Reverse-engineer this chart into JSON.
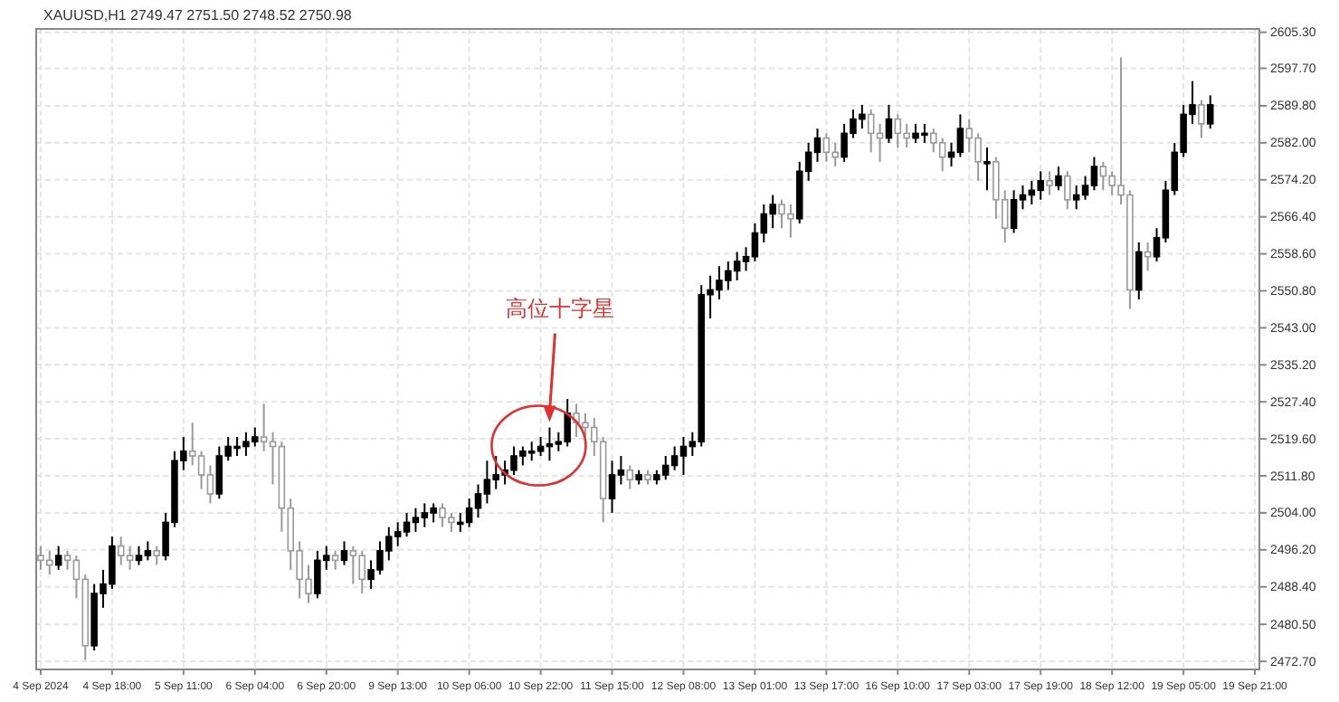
{
  "chart_data": {
    "type": "candlestick",
    "title": "XAUUSD,H1 2749.47 2751.50 2748.52 2750.98",
    "grid": true,
    "categories": [
      "4 Sep 2024",
      null,
      null,
      null,
      null,
      null,
      null,
      null,
      "4 Sep 18:00",
      null,
      null,
      null,
      null,
      null,
      null,
      null,
      "5 Sep 11:00",
      null,
      null,
      null,
      null,
      null,
      null,
      null,
      "6 Sep 04:00",
      null,
      null,
      null,
      null,
      null,
      null,
      null,
      "6 Sep 20:00",
      null,
      null,
      null,
      null,
      null,
      null,
      null,
      "9 Sep 13:00",
      null,
      null,
      null,
      null,
      null,
      null,
      null,
      "10 Sep 06:00",
      null,
      null,
      null,
      null,
      null,
      null,
      null,
      "10 Sep 22:00",
      null,
      null,
      null,
      null,
      null,
      null,
      null,
      "11 Sep 15:00",
      null,
      null,
      null,
      null,
      null,
      null,
      null,
      "12 Sep 08:00",
      null,
      null,
      null,
      null,
      null,
      null,
      null,
      "13 Sep 01:00",
      null,
      null,
      null,
      null,
      null,
      null,
      null,
      "13 Sep 17:00",
      null,
      null,
      null,
      null,
      null,
      null,
      null,
      "16 Sep 10:00",
      null,
      null,
      null,
      null,
      null,
      null,
      null,
      "17 Sep 03:00",
      null,
      null,
      null,
      null,
      null,
      null,
      null,
      "17 Sep 19:00",
      null,
      null,
      null,
      null,
      null,
      null,
      null,
      "18 Sep 12:00",
      null,
      null,
      null,
      null,
      null,
      null,
      null,
      "19 Sep 05:00",
      null,
      null,
      null,
      null,
      null,
      null,
      null,
      "19 Sep 21:00"
    ],
    "ohlc": [
      [
        2495,
        2497,
        2492,
        2494
      ],
      [
        2494,
        2496,
        2491,
        2493
      ],
      [
        2493,
        2497,
        2492,
        2495
      ],
      [
        2495,
        2496,
        2492,
        2494
      ],
      [
        2494,
        2495,
        2486,
        2490
      ],
      [
        2490,
        2491,
        2473,
        2476
      ],
      [
        2476,
        2489,
        2475,
        2487
      ],
      [
        2487,
        2492,
        2484,
        2489
      ],
      [
        2489,
        2499,
        2488,
        2497
      ],
      [
        2497,
        2499,
        2493,
        2495
      ],
      [
        2495,
        2497,
        2492,
        2494
      ],
      [
        2494,
        2497,
        2493,
        2495
      ],
      [
        2495,
        2498,
        2494,
        2496
      ],
      [
        2496,
        2497,
        2493,
        2495
      ],
      [
        2495,
        2504,
        2494,
        2502
      ],
      [
        2502,
        2517,
        2501,
        2515
      ],
      [
        2515,
        2520,
        2513,
        2517
      ],
      [
        2517,
        2523,
        2514,
        2516
      ],
      [
        2516,
        2517,
        2509,
        2512
      ],
      [
        2512,
        2514,
        2506,
        2508
      ],
      [
        2508,
        2518,
        2507,
        2516
      ],
      [
        2516,
        2520,
        2515,
        2518
      ],
      [
        2518,
        2520,
        2516,
        2518
      ],
      [
        2518,
        2521,
        2516,
        2519
      ],
      [
        2519,
        2522,
        2518,
        2520
      ],
      [
        2520,
        2527,
        2517,
        2519
      ],
      [
        2519,
        2521,
        2510,
        2518
      ],
      [
        2518,
        2519,
        2500,
        2505
      ],
      [
        2505,
        2507,
        2492,
        2496
      ],
      [
        2496,
        2498,
        2486,
        2490
      ],
      [
        2490,
        2493,
        2485,
        2487
      ],
      [
        2487,
        2496,
        2486,
        2494
      ],
      [
        2494,
        2497,
        2492,
        2495
      ],
      [
        2495,
        2496,
        2492,
        2494
      ],
      [
        2494,
        2498,
        2493,
        2496
      ],
      [
        2496,
        2497,
        2489,
        2495
      ],
      [
        2495,
        2496,
        2487,
        2490
      ],
      [
        2490,
        2494,
        2488,
        2492
      ],
      [
        2492,
        2498,
        2491,
        2496
      ],
      [
        2496,
        2501,
        2494,
        2499
      ],
      [
        2499,
        2502,
        2497,
        2500
      ],
      [
        2500,
        2504,
        2499,
        2502
      ],
      [
        2502,
        2505,
        2500,
        2503
      ],
      [
        2503,
        2506,
        2501,
        2504
      ],
      [
        2504,
        2506,
        2502,
        2505
      ],
      [
        2505,
        2506,
        2501,
        2503
      ],
      [
        2503,
        2504,
        2500,
        2502
      ],
      [
        2502,
        2504,
        2500,
        2502
      ],
      [
        2502,
        2507,
        2501,
        2505
      ],
      [
        2505,
        2510,
        2503,
        2508
      ],
      [
        2508,
        2515,
        2506,
        2511
      ],
      [
        2511,
        2516,
        2509,
        2512
      ],
      [
        2512,
        2515,
        2510,
        2513
      ],
      [
        2513,
        2518,
        2512,
        2516
      ],
      [
        2516,
        2518,
        2514,
        2517
      ],
      [
        2517,
        2519,
        2515,
        2517
      ],
      [
        2517,
        2520,
        2516,
        2518
      ],
      [
        2518,
        2522,
        2515,
        2518.5
      ],
      [
        2518.5,
        2521,
        2517,
        2519
      ],
      [
        2519,
        2528,
        2518,
        2525
      ],
      [
        2525,
        2527,
        2520,
        2523
      ],
      [
        2523,
        2525,
        2520,
        2522
      ],
      [
        2522,
        2524,
        2516,
        2519
      ],
      [
        2519,
        2520,
        2502,
        2507
      ],
      [
        2507,
        2515,
        2504,
        2512
      ],
      [
        2512,
        2516,
        2510,
        2513
      ],
      [
        2513,
        2514,
        2509,
        2511
      ],
      [
        2511,
        2513,
        2510,
        2512
      ],
      [
        2512,
        2513,
        2510,
        2511
      ],
      [
        2511,
        2513,
        2510,
        2512
      ],
      [
        2512,
        2516,
        2511,
        2514
      ],
      [
        2514,
        2518,
        2513,
        2516
      ],
      [
        2516,
        2520,
        2512,
        2518
      ],
      [
        2518,
        2521,
        2516,
        2519
      ],
      [
        2519,
        2552,
        2518,
        2550
      ],
      [
        2550,
        2554,
        2545,
        2551
      ],
      [
        2551,
        2556,
        2549,
        2553
      ],
      [
        2553,
        2557,
        2551,
        2555
      ],
      [
        2555,
        2559,
        2553,
        2557
      ],
      [
        2557,
        2560,
        2555,
        2558
      ],
      [
        2558,
        2565,
        2557,
        2563
      ],
      [
        2563,
        2569,
        2561,
        2567
      ],
      [
        2567,
        2571,
        2564,
        2569
      ],
      [
        2569,
        2570,
        2564,
        2567
      ],
      [
        2567,
        2569,
        2562,
        2566
      ],
      [
        2566,
        2578,
        2565,
        2576
      ],
      [
        2576,
        2582,
        2574,
        2580
      ],
      [
        2580,
        2585,
        2578,
        2583
      ],
      [
        2583,
        2584,
        2578,
        2580
      ],
      [
        2580,
        2582,
        2577,
        2579
      ],
      [
        2579,
        2586,
        2578,
        2584
      ],
      [
        2584,
        2589,
        2583,
        2587
      ],
      [
        2587,
        2590,
        2585,
        2588
      ],
      [
        2588,
        2589,
        2580,
        2584
      ],
      [
        2584,
        2586,
        2578,
        2583
      ],
      [
        2583,
        2590,
        2582,
        2587
      ],
      [
        2587,
        2588,
        2581,
        2584
      ],
      [
        2584,
        2586,
        2581,
        2583
      ],
      [
        2583,
        2586,
        2582,
        2584
      ],
      [
        2584,
        2586,
        2582,
        2584
      ],
      [
        2584,
        2585,
        2580,
        2582
      ],
      [
        2582,
        2583,
        2576,
        2579
      ],
      [
        2579,
        2582,
        2577,
        2580
      ],
      [
        2580,
        2588,
        2579,
        2585
      ],
      [
        2585,
        2587,
        2580,
        2583
      ],
      [
        2583,
        2584,
        2574,
        2578
      ],
      [
        2578,
        2581,
        2572,
        2578
      ],
      [
        2578,
        2579,
        2566,
        2570
      ],
      [
        2570,
        2572,
        2561,
        2564
      ],
      [
        2564,
        2572,
        2563,
        2570
      ],
      [
        2570,
        2573,
        2568,
        2571
      ],
      [
        2571,
        2574,
        2569,
        2572
      ],
      [
        2572,
        2576,
        2570,
        2574
      ],
      [
        2574,
        2576,
        2571,
        2573
      ],
      [
        2573,
        2577,
        2572,
        2575
      ],
      [
        2575,
        2576,
        2568,
        2570
      ],
      [
        2570,
        2573,
        2568,
        2571
      ],
      [
        2571,
        2575,
        2570,
        2573
      ],
      [
        2573,
        2579,
        2572,
        2577
      ],
      [
        2577,
        2578,
        2572,
        2575
      ],
      [
        2575,
        2576,
        2571,
        2573
      ],
      [
        2573,
        2600,
        2569,
        2571
      ],
      [
        2571,
        2572,
        2547,
        2551
      ],
      [
        2551,
        2561,
        2549,
        2559
      ],
      [
        2559,
        2561,
        2555,
        2558
      ],
      [
        2558,
        2564,
        2557,
        2562
      ],
      [
        2562,
        2574,
        2561,
        2572
      ],
      [
        2572,
        2582,
        2571,
        2580
      ],
      [
        2580,
        2590,
        2579,
        2588
      ],
      [
        2588,
        2595,
        2586,
        2590
      ],
      [
        2590,
        2591,
        2583,
        2586
      ],
      [
        2586,
        2592,
        2585,
        2590
      ],
      null,
      null,
      null,
      null,
      null
    ],
    "ylim": [
      2471,
      2606
    ],
    "yticks": [
      {
        "value": 2472.7,
        "label": "2472.70"
      },
      {
        "value": 2480.5,
        "label": "2480.50"
      },
      {
        "value": 2488.4,
        "label": "2488.40"
      },
      {
        "value": 2496.2,
        "label": "2496.20"
      },
      {
        "value": 2504,
        "label": "2504.00"
      },
      {
        "value": 2511.8,
        "label": "2511.80"
      },
      {
        "value": 2519.6,
        "label": "2519.60"
      },
      {
        "value": 2527.4,
        "label": "2527.40"
      },
      {
        "value": 2535.2,
        "label": "2535.20"
      },
      {
        "value": 2543,
        "label": "2543.00"
      },
      {
        "value": 2550.8,
        "label": "2550.80"
      },
      {
        "value": 2558.6,
        "label": "2558.60"
      },
      {
        "value": 2566.4,
        "label": "2566.40"
      },
      {
        "value": 2574.2,
        "label": "2574.20"
      },
      {
        "value": 2582,
        "label": "2582.00"
      },
      {
        "value": 2589.8,
        "label": "2589.80"
      },
      {
        "value": 2597.7,
        "label": "2597.70"
      },
      {
        "value": 2605.3,
        "label": "2605.30"
      }
    ],
    "annotations": [
      "高位十字星"
    ]
  }
}
